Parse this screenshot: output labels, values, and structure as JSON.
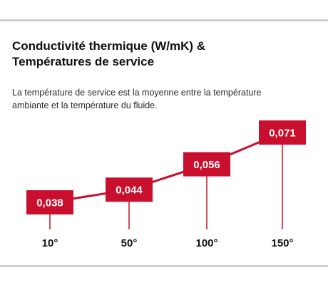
{
  "header": {
    "title_line1": "Conductivité thermique (W/mK) &",
    "title_line2": "Températures de service",
    "subtitle_line1": "La température de service est la moyenne entre la température",
    "subtitle_line2": "ambiante et la température du fluide."
  },
  "colors": {
    "accent": "#c8102e",
    "text": "#111111",
    "rule": "#cfcfcf"
  },
  "chart_data": {
    "type": "line",
    "title": "Conductivité thermique (W/mK) & Températures de service",
    "subtitle": "La température de service est la moyenne entre la température ambiante et la température du fluide.",
    "categories": [
      "10°",
      "50°",
      "100°",
      "150°"
    ],
    "series": [
      {
        "values": [
          0.038,
          0.044,
          0.056,
          0.071
        ],
        "labels": [
          "0,038",
          "0,044",
          "0,056",
          "0,071"
        ]
      }
    ],
    "xlabel": "",
    "ylabel": "",
    "grid": false,
    "legend": "none"
  }
}
